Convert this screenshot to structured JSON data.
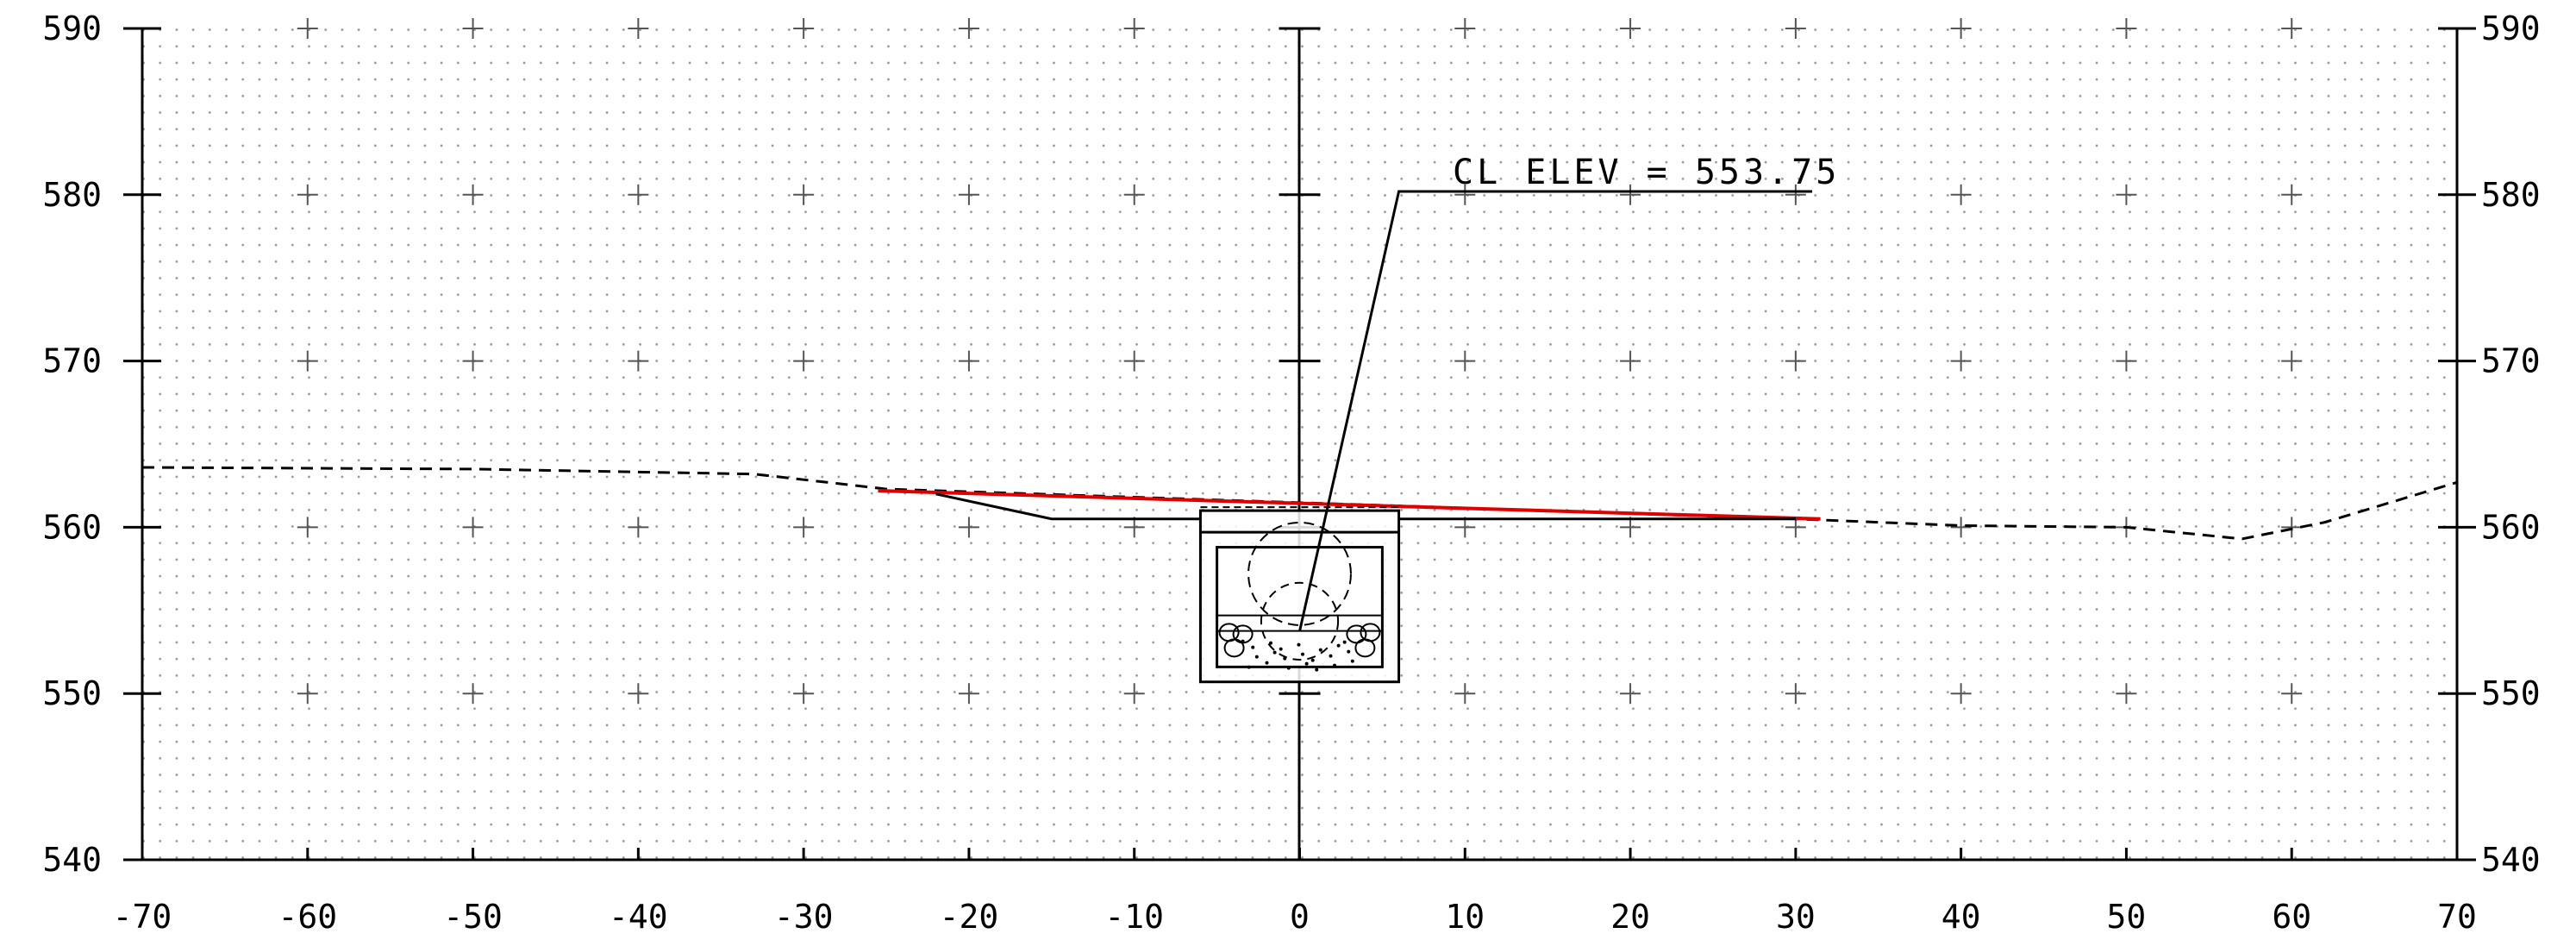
{
  "annotation": {
    "text": "CL ELEV = 553.75"
  },
  "chart_data": {
    "type": "line",
    "x_ticks": [
      "-70",
      "-60",
      "-50",
      "-40",
      "-30",
      "-20",
      "-10",
      "0",
      "10",
      "20",
      "30",
      "40",
      "50",
      "60",
      "70"
    ],
    "y_ticks": [
      "540",
      "550",
      "560",
      "570",
      "580",
      "590"
    ],
    "xlim": [
      -70,
      70
    ],
    "ylim": [
      540,
      590
    ],
    "grid": true,
    "series": [
      {
        "style": "dashed",
        "color": "#000000",
        "points": [
          [
            -70,
            563.6
          ],
          [
            -50,
            563.5
          ],
          [
            -33,
            563.2
          ],
          [
            -25,
            562.3
          ],
          [
            30,
            560.5
          ],
          [
            40,
            560.1
          ],
          [
            50,
            560
          ],
          [
            57,
            559.3
          ],
          [
            62,
            560.3
          ],
          [
            66,
            561.5
          ],
          [
            70,
            562.7
          ]
        ]
      },
      {
        "style": "solid",
        "color": "#e00000",
        "points": [
          [
            -25.5,
            562.2
          ],
          [
            31.5,
            560.5
          ]
        ]
      },
      {
        "style": "solid",
        "color": "#000000",
        "points": [
          [
            -22,
            562.0
          ],
          [
            -15,
            560.5
          ],
          [
            -6,
            560.5
          ]
        ]
      },
      {
        "style": "solid",
        "color": "#000000",
        "points": [
          [
            6,
            560.5
          ],
          [
            30,
            560.5
          ]
        ]
      }
    ],
    "culvert": {
      "outer": [
        [
          -6,
          561.0
        ],
        [
          6,
          561.0
        ],
        [
          6,
          550.7
        ],
        [
          -6,
          550.7
        ]
      ],
      "slab_y": 559.7,
      "inner": [
        [
          -5,
          558.8
        ],
        [
          5,
          558.8
        ],
        [
          5,
          551.6
        ],
        [
          -5,
          551.6
        ]
      ],
      "inner_line_y": 554.7,
      "circle_center": [
        0,
        557.2
      ],
      "circle_radius": 3.1
    },
    "leader": {
      "points": [
        [
          0,
          553.75
        ],
        [
          6,
          580.2
        ],
        [
          31,
          580.2
        ]
      ]
    }
  }
}
